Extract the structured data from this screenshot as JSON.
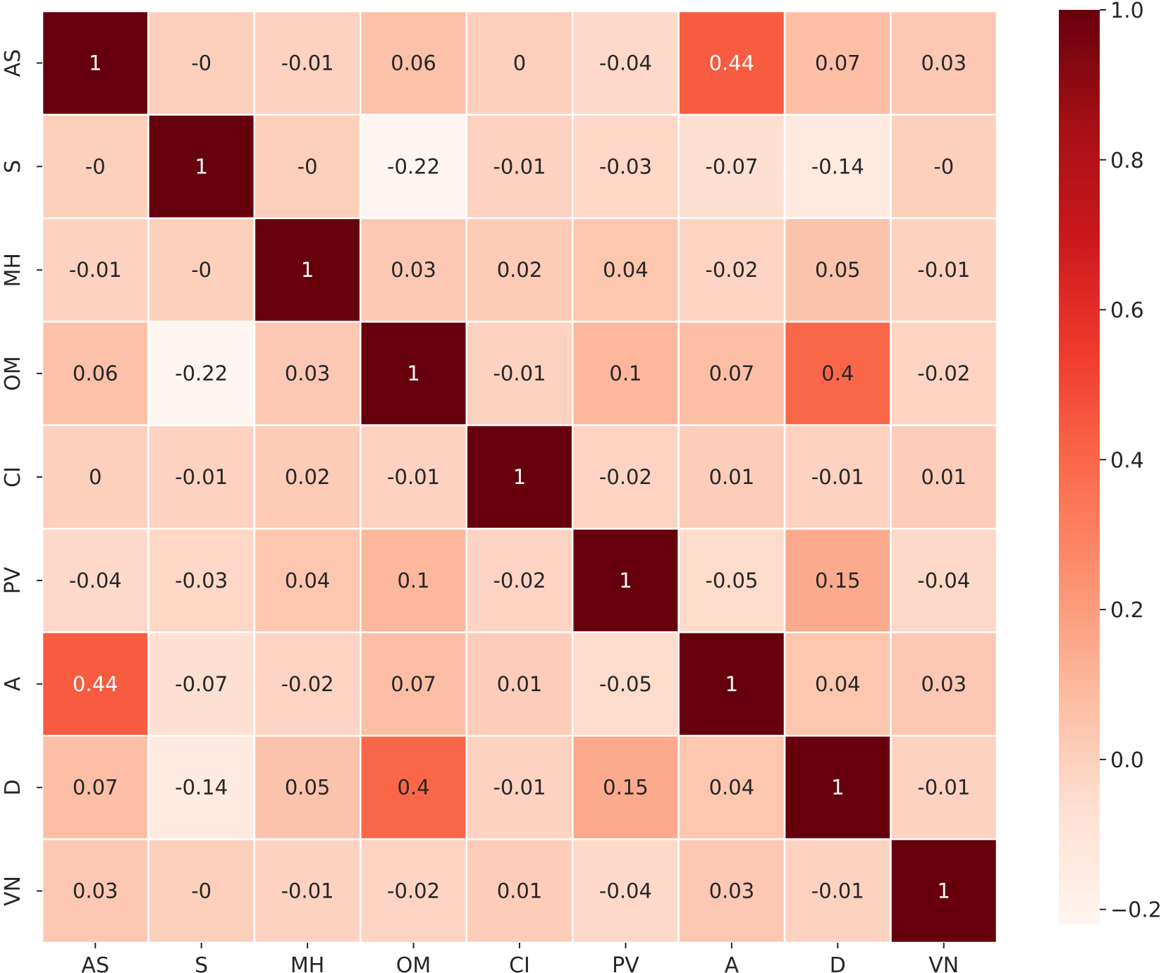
{
  "chart_data": {
    "type": "heatmap",
    "title": "",
    "xlabel": "",
    "ylabel": "",
    "x_categories": [
      "AS",
      "S",
      "MH",
      "OM",
      "CI",
      "PV",
      "A",
      "D",
      "VN"
    ],
    "y_categories": [
      "AS",
      "S",
      "MH",
      "OM",
      "CI",
      "PV",
      "A",
      "D",
      "VN"
    ],
    "values": [
      [
        1,
        0,
        -0.01,
        0.06,
        0,
        -0.04,
        0.44,
        0.07,
        0.03
      ],
      [
        0,
        1,
        0,
        -0.22,
        -0.01,
        -0.03,
        -0.07,
        -0.14,
        0
      ],
      [
        -0.01,
        0,
        1,
        0.03,
        0.02,
        0.04,
        -0.02,
        0.05,
        -0.01
      ],
      [
        0.06,
        -0.22,
        0.03,
        1,
        -0.01,
        0.1,
        0.07,
        0.4,
        -0.02
      ],
      [
        0,
        -0.01,
        0.02,
        -0.01,
        1,
        -0.02,
        0.01,
        -0.01,
        0.01
      ],
      [
        -0.04,
        -0.03,
        0.04,
        0.1,
        -0.02,
        1,
        -0.05,
        0.15,
        -0.04
      ],
      [
        0.44,
        -0.07,
        -0.02,
        0.07,
        0.01,
        -0.05,
        1,
        0.04,
        0.03
      ],
      [
        0.07,
        -0.14,
        0.05,
        0.4,
        -0.01,
        0.15,
        0.04,
        1,
        -0.01
      ],
      [
        0.03,
        0,
        -0.01,
        -0.02,
        0.01,
        -0.04,
        0.03,
        -0.01,
        1
      ]
    ],
    "cell_labels": [
      [
        "1",
        "-0",
        "-0.01",
        "0.06",
        "0",
        "-0.04",
        "0.44",
        "0.07",
        "0.03"
      ],
      [
        "-0",
        "1",
        "-0",
        "-0.22",
        "-0.01",
        "-0.03",
        "-0.07",
        "-0.14",
        "-0"
      ],
      [
        "-0.01",
        "-0",
        "1",
        "0.03",
        "0.02",
        "0.04",
        "-0.02",
        "0.05",
        "-0.01"
      ],
      [
        "0.06",
        "-0.22",
        "0.03",
        "1",
        "-0.01",
        "0.1",
        "0.07",
        "0.4",
        "-0.02"
      ],
      [
        "0",
        "-0.01",
        "0.02",
        "-0.01",
        "1",
        "-0.02",
        "0.01",
        "-0.01",
        "0.01"
      ],
      [
        "-0.04",
        "-0.03",
        "0.04",
        "0.1",
        "-0.02",
        "1",
        "-0.05",
        "0.15",
        "-0.04"
      ],
      [
        "0.44",
        "-0.07",
        "-0.02",
        "0.07",
        "0.01",
        "-0.05",
        "1",
        "0.04",
        "0.03"
      ],
      [
        "0.07",
        "-0.14",
        "0.05",
        "0.4",
        "-0.01",
        "0.15",
        "0.04",
        "1",
        "-0.01"
      ],
      [
        "0.03",
        "-0",
        "-0.01",
        "-0.02",
        "0.01",
        "-0.04",
        "0.03",
        "-0.01",
        "1"
      ]
    ],
    "colormap": "Reds",
    "colormap_stops": [
      "#fff5f0",
      "#fee0d2",
      "#fcbba1",
      "#fc9272",
      "#fb6a4a",
      "#ef3b2c",
      "#cb181d",
      "#a50f15",
      "#67000d"
    ],
    "colorbar": {
      "range": [
        -0.22,
        1.0
      ],
      "ticks": [
        1.0,
        0.8,
        0.6,
        0.4,
        0.2,
        0.0,
        -0.2
      ],
      "tick_labels": [
        "1.0",
        "0.8",
        "0.6",
        "0.4",
        "0.2",
        "0.0",
        "−0.2"
      ],
      "placement": "right"
    },
    "grid": true,
    "grid_color": "#ffffff",
    "legend": "none"
  }
}
